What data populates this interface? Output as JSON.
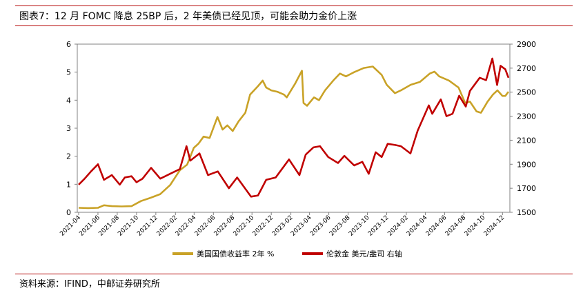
{
  "title": "图表7：12 月 FOMC 降息 25BP 后，2 年美债已经见顶，可能会助力金价上涨",
  "source": "资料来源：IFIND，中邮证券研究所",
  "colors": {
    "rule": "#b30000",
    "yield": "#c9a227",
    "gold": "#c00000",
    "axis": "#808080"
  },
  "chart_data": {
    "type": "line",
    "title": "",
    "xlabel": "",
    "ylabel": "",
    "x": [
      "2021-04",
      "2021-06",
      "2021-08",
      "2021-10",
      "2021-12",
      "2022-02",
      "2022-04",
      "2022-06",
      "2022-08",
      "2022-10",
      "2022-12",
      "2023-02",
      "2023-04",
      "2023-06",
      "2023-08",
      "2023-10",
      "2023-12",
      "2024-02",
      "2024-04",
      "2024-06",
      "2024-08",
      "2024-10",
      "2024-12"
    ],
    "x_ticks": [
      "2021-04",
      "2021-06",
      "2021-08",
      "2021-10",
      "2021-12",
      "2022-02",
      "2022-04",
      "2022-06",
      "2022-08",
      "2022-10",
      "2022-12",
      "2023-02",
      "2023-04",
      "2023-06",
      "2023-08",
      "2023-10",
      "2023-12",
      "2024-02",
      "2024-04",
      "2024-06",
      "2024-08",
      "2024-10",
      "2024-12"
    ],
    "y_left": {
      "min": 0,
      "max": 6,
      "ticks": [
        "0",
        "1",
        "2",
        "3",
        "4",
        "5",
        "6"
      ]
    },
    "y_right": {
      "min": 1500,
      "max": 2900,
      "ticks": [
        "1500",
        "1700",
        "1900",
        "2100",
        "2300",
        "2500",
        "2700",
        "2900"
      ]
    },
    "legend_position": "bottom",
    "grid": false,
    "series": [
      {
        "name": "美国国债收益率 2年 %",
        "axis": "left",
        "color": "#c9a227",
        "values": [
          [
            "2021-04-01",
            0.16
          ],
          [
            "2021-05-01",
            0.15
          ],
          [
            "2021-06-01",
            0.16
          ],
          [
            "2021-06-20",
            0.25
          ],
          [
            "2021-07-15",
            0.22
          ],
          [
            "2021-08-15",
            0.21
          ],
          [
            "2021-09-15",
            0.22
          ],
          [
            "2021-10-15",
            0.4
          ],
          [
            "2021-11-15",
            0.52
          ],
          [
            "2021-12-15",
            0.65
          ],
          [
            "2022-01-15",
            0.97
          ],
          [
            "2022-02-15",
            1.5
          ],
          [
            "2022-03-10",
            1.7
          ],
          [
            "2022-03-31",
            2.3
          ],
          [
            "2022-04-15",
            2.45
          ],
          [
            "2022-05-01",
            2.7
          ],
          [
            "2022-05-20",
            2.65
          ],
          [
            "2022-06-14",
            3.4
          ],
          [
            "2022-06-30",
            2.95
          ],
          [
            "2022-07-15",
            3.1
          ],
          [
            "2022-08-01",
            2.9
          ],
          [
            "2022-08-20",
            3.25
          ],
          [
            "2022-09-10",
            3.55
          ],
          [
            "2022-09-25",
            4.2
          ],
          [
            "2022-10-20",
            4.5
          ],
          [
            "2022-11-04",
            4.7
          ],
          [
            "2022-11-15",
            4.45
          ],
          [
            "2022-12-01",
            4.35
          ],
          [
            "2022-12-20",
            4.3
          ],
          [
            "2023-01-10",
            4.2
          ],
          [
            "2023-01-19",
            4.1
          ],
          [
            "2023-02-15",
            4.6
          ],
          [
            "2023-03-08",
            5.05
          ],
          [
            "2023-03-13",
            3.9
          ],
          [
            "2023-03-24",
            3.8
          ],
          [
            "2023-04-15",
            4.1
          ],
          [
            "2023-05-01",
            4.0
          ],
          [
            "2023-05-20",
            4.35
          ],
          [
            "2023-06-15",
            4.7
          ],
          [
            "2023-07-06",
            4.95
          ],
          [
            "2023-07-25",
            4.85
          ],
          [
            "2023-08-20",
            5.0
          ],
          [
            "2023-09-20",
            5.15
          ],
          [
            "2023-10-18",
            5.2
          ],
          [
            "2023-11-15",
            4.9
          ],
          [
            "2023-12-01",
            4.55
          ],
          [
            "2023-12-27",
            4.25
          ],
          [
            "2024-01-15",
            4.35
          ],
          [
            "2024-02-15",
            4.55
          ],
          [
            "2024-03-15",
            4.65
          ],
          [
            "2024-04-15",
            4.95
          ],
          [
            "2024-04-30",
            5.02
          ],
          [
            "2024-05-15",
            4.85
          ],
          [
            "2024-06-15",
            4.7
          ],
          [
            "2024-07-15",
            4.45
          ],
          [
            "2024-08-05",
            3.9
          ],
          [
            "2024-08-20",
            3.95
          ],
          [
            "2024-09-10",
            3.6
          ],
          [
            "2024-09-24",
            3.55
          ],
          [
            "2024-10-15",
            3.95
          ],
          [
            "2024-11-01",
            4.2
          ],
          [
            "2024-11-15",
            4.35
          ],
          [
            "2024-12-01",
            4.15
          ],
          [
            "2024-12-10",
            4.15
          ],
          [
            "2024-12-20",
            4.3
          ]
        ]
      },
      {
        "name": "伦敦金 美元/盎司 右轴",
        "axis": "right",
        "color": "#c00000",
        "values": [
          [
            "2021-04-01",
            1730
          ],
          [
            "2021-04-20",
            1780
          ],
          [
            "2021-05-10",
            1840
          ],
          [
            "2021-06-01",
            1900
          ],
          [
            "2021-06-20",
            1770
          ],
          [
            "2021-07-15",
            1810
          ],
          [
            "2021-08-09",
            1730
          ],
          [
            "2021-08-25",
            1790
          ],
          [
            "2021-09-15",
            1800
          ],
          [
            "2021-10-01",
            1750
          ],
          [
            "2021-10-20",
            1780
          ],
          [
            "2021-11-16",
            1870
          ],
          [
            "2021-12-15",
            1780
          ],
          [
            "2022-01-15",
            1820
          ],
          [
            "2022-02-15",
            1860
          ],
          [
            "2022-03-08",
            2050
          ],
          [
            "2022-03-20",
            1930
          ],
          [
            "2022-04-18",
            1990
          ],
          [
            "2022-05-15",
            1810
          ],
          [
            "2022-06-15",
            1840
          ],
          [
            "2022-07-20",
            1700
          ],
          [
            "2022-08-15",
            1790
          ],
          [
            "2022-09-28",
            1630
          ],
          [
            "2022-10-20",
            1640
          ],
          [
            "2022-11-15",
            1770
          ],
          [
            "2022-12-15",
            1790
          ],
          [
            "2023-01-26",
            1940
          ],
          [
            "2023-02-28",
            1810
          ],
          [
            "2023-03-20",
            1980
          ],
          [
            "2023-04-13",
            2040
          ],
          [
            "2023-05-04",
            2050
          ],
          [
            "2023-05-30",
            1960
          ],
          [
            "2023-06-30",
            1910
          ],
          [
            "2023-07-20",
            1970
          ],
          [
            "2023-08-20",
            1890
          ],
          [
            "2023-09-15",
            1920
          ],
          [
            "2023-10-05",
            1820
          ],
          [
            "2023-10-27",
            2000
          ],
          [
            "2023-11-15",
            1960
          ],
          [
            "2023-12-04",
            2070
          ],
          [
            "2023-12-28",
            2060
          ],
          [
            "2024-01-15",
            2050
          ],
          [
            "2024-02-14",
            1990
          ],
          [
            "2024-03-08",
            2180
          ],
          [
            "2024-04-12",
            2390
          ],
          [
            "2024-04-23",
            2320
          ],
          [
            "2024-05-20",
            2440
          ],
          [
            "2024-06-07",
            2300
          ],
          [
            "2024-06-26",
            2320
          ],
          [
            "2024-07-17",
            2470
          ],
          [
            "2024-08-07",
            2380
          ],
          [
            "2024-08-20",
            2510
          ],
          [
            "2024-09-20",
            2620
          ],
          [
            "2024-10-10",
            2600
          ],
          [
            "2024-10-30",
            2780
          ],
          [
            "2024-11-14",
            2560
          ],
          [
            "2024-11-25",
            2720
          ],
          [
            "2024-12-10",
            2690
          ],
          [
            "2024-12-20",
            2620
          ]
        ]
      }
    ]
  }
}
